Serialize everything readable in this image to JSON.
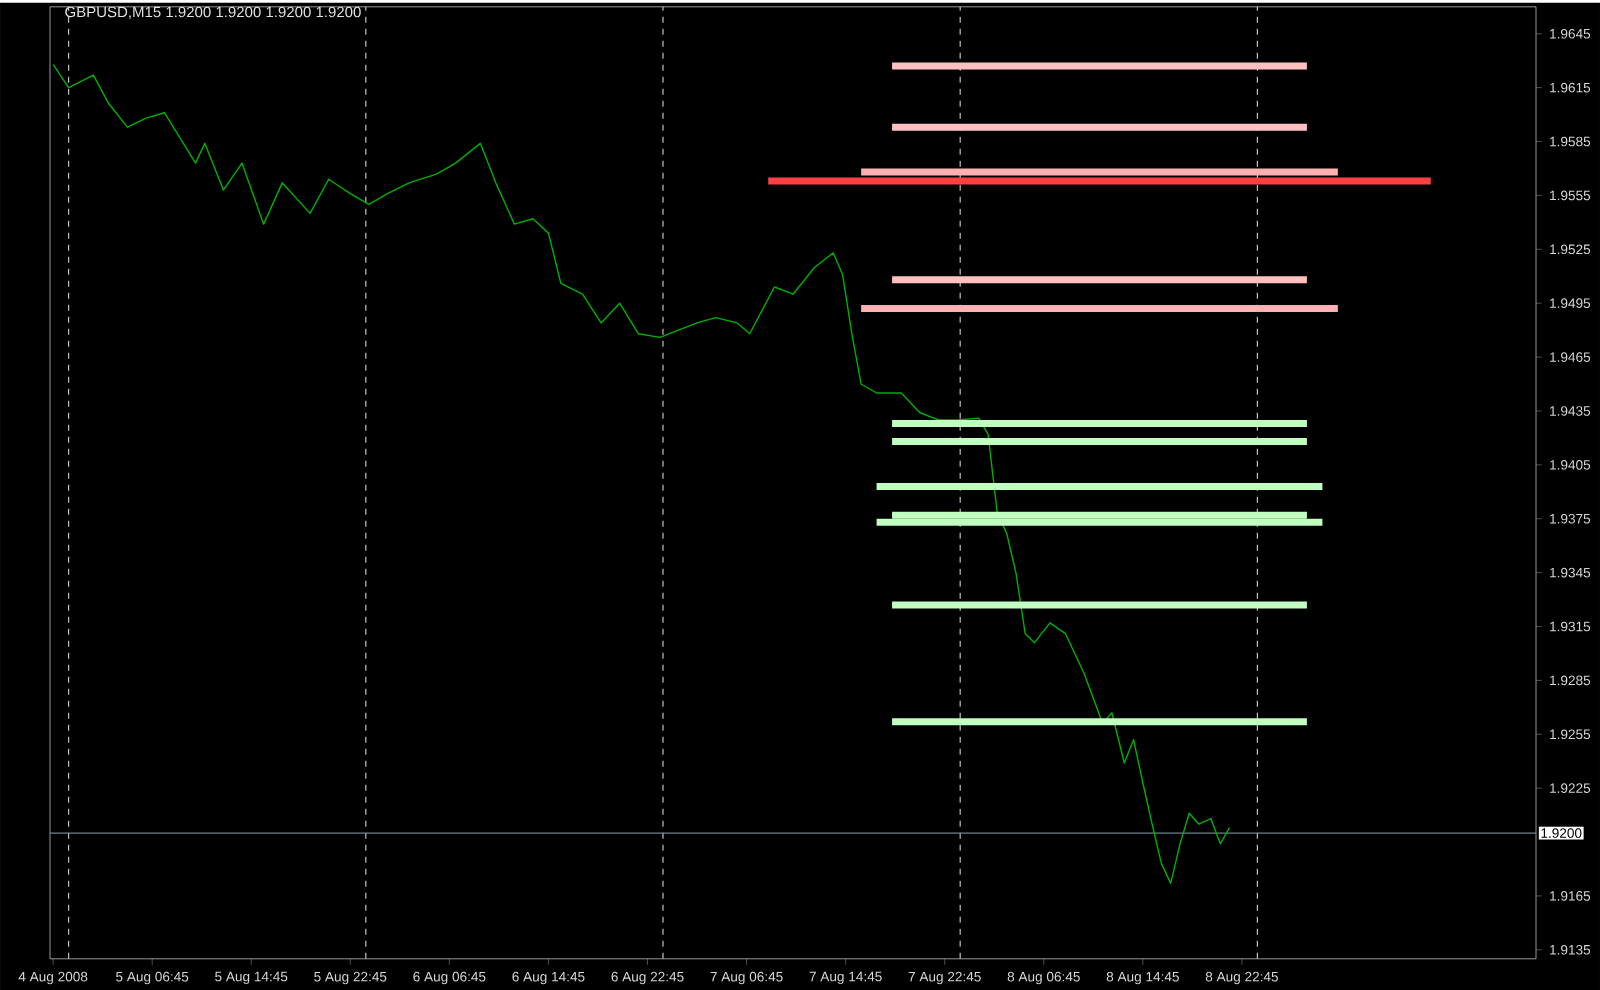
{
  "chart_data": {
    "type": "line",
    "title": "GBPUSD,M15  1.9200 1.9200 1.9200 1.9200",
    "xlim": [
      "2008-08-04T22:30",
      "2008-08-09T22:30"
    ],
    "ylim": [
      1.913,
      1.966
    ],
    "xticks": [
      {
        "value": "2008-08-04T22:45",
        "label": "4 Aug 2008"
      },
      {
        "value": "2008-08-05T06:45",
        "label": "5 Aug 06:45"
      },
      {
        "value": "2008-08-05T14:45",
        "label": "5 Aug 14:45"
      },
      {
        "value": "2008-08-05T22:45",
        "label": "5 Aug 22:45"
      },
      {
        "value": "2008-08-06T06:45",
        "label": "6 Aug 06:45"
      },
      {
        "value": "2008-08-06T14:45",
        "label": "6 Aug 14:45"
      },
      {
        "value": "2008-08-06T22:45",
        "label": "6 Aug 22:45"
      },
      {
        "value": "2008-08-07T06:45",
        "label": "7 Aug 06:45"
      },
      {
        "value": "2008-08-07T14:45",
        "label": "7 Aug 14:45"
      },
      {
        "value": "2008-08-07T22:45",
        "label": "7 Aug 22:45"
      },
      {
        "value": "2008-08-08T06:45",
        "label": "8 Aug 06:45"
      },
      {
        "value": "2008-08-08T14:45",
        "label": "8 Aug 14:45"
      },
      {
        "value": "2008-08-08T22:45",
        "label": "8 Aug 22:45"
      }
    ],
    "yticks": [
      1.9645,
      1.9615,
      1.9585,
      1.9555,
      1.9525,
      1.9495,
      1.9465,
      1.9435,
      1.9405,
      1.9375,
      1.9345,
      1.9315,
      1.9285,
      1.9255,
      1.9225,
      1.9165,
      1.9135
    ],
    "marker": "none",
    "ref_lines": [
      {
        "axis": "x",
        "value": "2008-08-05T00:00",
        "label": null,
        "color": "#c0c0c0",
        "line_style": "dashed"
      },
      {
        "axis": "x",
        "value": "2008-08-06T00:00",
        "label": null,
        "color": "#c0c0c0",
        "line_style": "dashed"
      },
      {
        "axis": "x",
        "value": "2008-08-07T00:00",
        "label": null,
        "color": "#c0c0c0",
        "line_style": "dashed"
      },
      {
        "axis": "x",
        "value": "2008-08-08T00:00",
        "label": null,
        "color": "#c0c0c0",
        "line_style": "dashed"
      },
      {
        "axis": "x",
        "value": "2008-08-09T00:00",
        "label": null,
        "color": "#c0c0c0",
        "line_style": "dashed"
      },
      {
        "axis": "y",
        "value": 1.92,
        "label": "1.9200",
        "color": "#708090",
        "line_style": "solid"
      }
    ],
    "series": [
      {
        "color": "#00b000",
        "x": [
          "2008-08-04T22:45",
          "2008-08-05T00:00",
          "2008-08-05T02:00",
          "2008-08-05T03:15",
          "2008-08-05T04:45",
          "2008-08-05T06:15",
          "2008-08-05T07:45",
          "2008-08-05T10:15",
          "2008-08-05T11:00",
          "2008-08-05T12:30",
          "2008-08-05T14:00",
          "2008-08-05T15:45",
          "2008-08-05T17:15",
          "2008-08-05T19:30",
          "2008-08-05T21:00",
          "2008-08-05T22:45",
          "2008-08-06T00:15",
          "2008-08-06T01:45",
          "2008-08-06T03:30",
          "2008-08-06T05:45",
          "2008-08-06T07:15",
          "2008-08-06T09:15",
          "2008-08-06T10:30",
          "2008-08-06T12:00",
          "2008-08-06T13:30",
          "2008-08-06T14:45",
          "2008-08-06T15:45",
          "2008-08-06T17:30",
          "2008-08-06T19:00",
          "2008-08-06T20:30",
          "2008-08-06T22:00",
          "2008-08-06T23:45",
          "2008-08-07T01:15",
          "2008-08-07T02:45",
          "2008-08-07T04:15",
          "2008-08-07T06:00",
          "2008-08-07T07:00",
          "2008-08-07T09:00",
          "2008-08-07T10:30",
          "2008-08-07T12:15",
          "2008-08-07T13:45",
          "2008-08-07T14:30",
          "2008-08-07T15:15",
          "2008-08-07T16:00",
          "2008-08-07T17:15",
          "2008-08-07T19:15",
          "2008-08-07T20:45",
          "2008-08-07T22:15",
          "2008-08-07T23:45",
          "2008-08-08T01:30",
          "2008-08-08T02:15",
          "2008-08-08T03:00",
          "2008-08-08T03:45",
          "2008-08-08T04:30",
          "2008-08-08T05:15",
          "2008-08-08T06:00",
          "2008-08-08T07:15",
          "2008-08-08T08:30",
          "2008-08-08T09:15",
          "2008-08-08T10:00",
          "2008-08-08T11:30",
          "2008-08-08T12:15",
          "2008-08-08T13:15",
          "2008-08-08T14:00",
          "2008-08-08T14:45",
          "2008-08-08T15:30",
          "2008-08-08T16:15",
          "2008-08-08T17:00",
          "2008-08-08T17:45",
          "2008-08-08T18:30",
          "2008-08-08T19:15",
          "2008-08-08T20:15",
          "2008-08-08T21:00",
          "2008-08-08T21:45"
        ],
        "values": [
          1.9628,
          1.9615,
          1.9622,
          1.9606,
          1.9593,
          1.9598,
          1.9601,
          1.9573,
          1.9584,
          1.9558,
          1.9573,
          1.9539,
          1.9562,
          1.9545,
          1.9564,
          1.9556,
          1.955,
          1.9556,
          1.9562,
          1.9567,
          1.9573,
          1.9584,
          1.9562,
          1.9539,
          1.9542,
          1.9534,
          1.9506,
          1.95,
          1.9484,
          1.9495,
          1.9478,
          1.9476,
          1.948,
          1.9484,
          1.9487,
          1.9484,
          1.9478,
          1.9504,
          1.95,
          1.9515,
          1.9523,
          1.9511,
          1.9478,
          1.945,
          1.9445,
          1.9445,
          1.9434,
          1.943,
          1.943,
          1.9431,
          1.9422,
          1.9378,
          1.9367,
          1.9345,
          1.9311,
          1.9306,
          1.9317,
          1.9311,
          1.93,
          1.9289,
          1.9261,
          1.9267,
          1.9239,
          1.9252,
          1.9228,
          1.9205,
          1.9183,
          1.9172,
          1.9194,
          1.9211,
          1.9205,
          1.9208,
          1.9194,
          1.9203
        ]
      },
      {
        "color": "#ffc0c0",
        "x": [
          "2008-08-07T18:30",
          "2008-08-09T04:00"
        ],
        "values": [
          1.9627,
          1.9627
        ]
      },
      {
        "color": "#ffc0c0",
        "x": [
          "2008-08-07T18:30",
          "2008-08-09T04:00"
        ],
        "values": [
          1.9593,
          1.9593
        ]
      },
      {
        "color": "#ffb0b0",
        "x": [
          "2008-08-07T16:00",
          "2008-08-09T06:30"
        ],
        "values": [
          1.9568,
          1.9568
        ]
      },
      {
        "color": "#ff4040",
        "x": [
          "2008-08-07T08:30",
          "2008-08-09T14:00"
        ],
        "values": [
          1.9563,
          1.9563
        ]
      },
      {
        "color": "#ffc0c0",
        "x": [
          "2008-08-07T18:30",
          "2008-08-09T04:00"
        ],
        "values": [
          1.9508,
          1.9508
        ]
      },
      {
        "color": "#ffb0b0",
        "x": [
          "2008-08-07T16:00",
          "2008-08-09T06:30"
        ],
        "values": [
          1.9492,
          1.9492
        ]
      },
      {
        "color": "#c0ffc0",
        "x": [
          "2008-08-07T18:30",
          "2008-08-09T04:00"
        ],
        "values": [
          1.9428,
          1.9428
        ]
      },
      {
        "color": "#c0ffc0",
        "x": [
          "2008-08-07T18:30",
          "2008-08-09T04:00"
        ],
        "values": [
          1.9418,
          1.9418
        ]
      },
      {
        "color": "#c0ffc0",
        "x": [
          "2008-08-07T17:15",
          "2008-08-09T05:15"
        ],
        "values": [
          1.9393,
          1.9393
        ]
      },
      {
        "color": "#c0ffc0",
        "x": [
          "2008-08-07T18:30",
          "2008-08-09T04:00"
        ],
        "values": [
          1.9377,
          1.9377
        ]
      },
      {
        "color": "#c0ffc0",
        "x": [
          "2008-08-07T17:15",
          "2008-08-09T05:15"
        ],
        "values": [
          1.9373,
          1.9373
        ]
      },
      {
        "color": "#c0ffc0",
        "x": [
          "2008-08-07T18:30",
          "2008-08-09T04:00"
        ],
        "values": [
          1.9327,
          1.9327
        ]
      },
      {
        "color": "#c0ffc0",
        "x": [
          "2008-08-07T18:30",
          "2008-08-09T04:00"
        ],
        "values": [
          1.9262,
          1.9262
        ]
      }
    ]
  }
}
